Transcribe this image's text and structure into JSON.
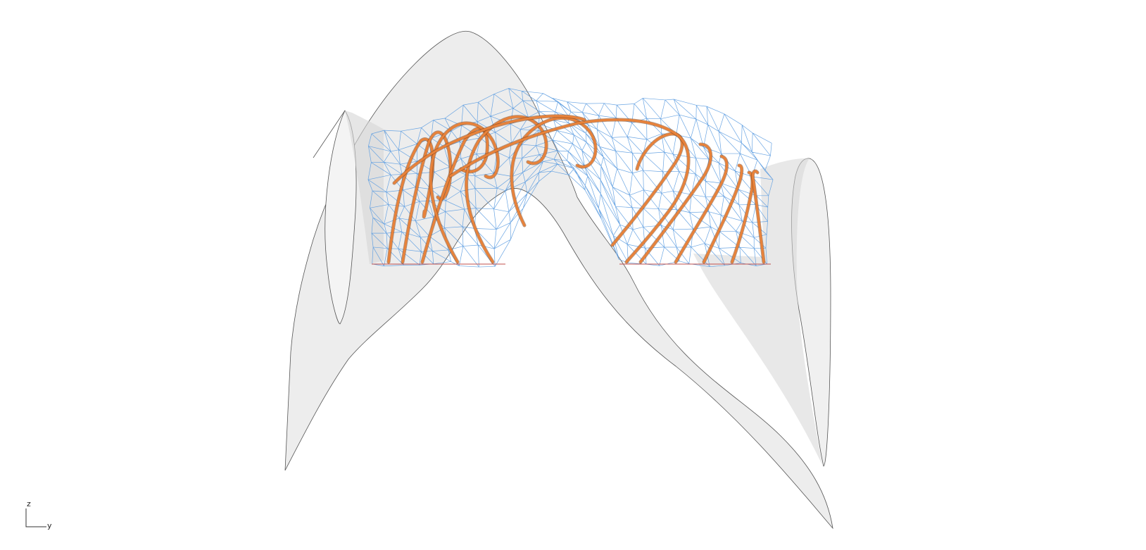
{
  "viewport": {
    "background": "#ffffff",
    "axes": {
      "vertical": "z",
      "horizontal": "y"
    }
  },
  "colors": {
    "shell_fill": "#ededed",
    "shell_fill_dark": "#d6d6d6",
    "shell_edge": "#555555",
    "mesh": "#5a9be0",
    "rod": "#e8823a",
    "rod_dark": "#7a3f18",
    "base_line": "#c0504d"
  },
  "scene": {
    "objects": [
      "outer-shell-surface",
      "triangulated-mesh",
      "helical-rods"
    ]
  }
}
